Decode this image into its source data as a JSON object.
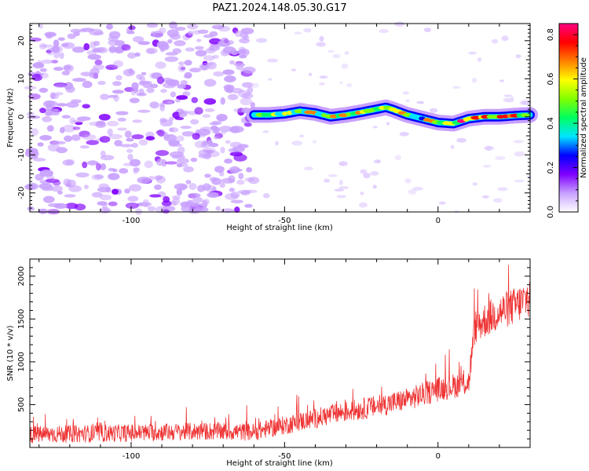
{
  "title": "PAZ1.2024.148.05.30.G17",
  "chart_data": [
    {
      "type": "heatmap",
      "xlabel": "Height of straight line (km)",
      "ylabel": "Frequency (Hz)",
      "xlim": [
        -133,
        30
      ],
      "ylim": [
        -25,
        24.5
      ],
      "x_ticks": [
        -100,
        -50,
        0
      ],
      "y_ticks": [
        -20,
        -10,
        0,
        10,
        20
      ],
      "noise_region_x": [
        -133,
        -60
      ],
      "signal_track": {
        "x": [
          -60,
          -55,
          -50,
          -45,
          -40,
          -35,
          -30,
          -25,
          -20,
          -17,
          -15,
          -10,
          -5,
          0,
          5,
          10,
          15,
          20,
          25,
          30
        ],
        "freq_hz": [
          0.5,
          0.5,
          0.8,
          1.5,
          1.0,
          0.0,
          0.5,
          1.2,
          2.0,
          2.5,
          2.0,
          0.5,
          -0.5,
          -1.5,
          -1.8,
          -0.5,
          0.0,
          0.0,
          0.3,
          0.5
        ]
      },
      "colorbar": {
        "label": "Normalized spectral amplitude",
        "ticks": [
          0.0,
          0.2,
          0.4,
          0.6,
          0.8
        ],
        "range": [
          0,
          0.85
        ],
        "colors": [
          "#ffffff",
          "#c8a0ff",
          "#8000ff",
          "#0000ff",
          "#00e5ff",
          "#00ff60",
          "#80ff00",
          "#ffff00",
          "#ff8000",
          "#ff0000",
          "#ff0080"
        ]
      },
      "grid": false
    },
    {
      "type": "line",
      "xlabel": "Height of straight line (km)",
      "ylabel": "SNR (10 * v/v)",
      "xlim": [
        -133,
        30
      ],
      "ylim": [
        0,
        2200
      ],
      "x_ticks": [
        -100,
        -50,
        0
      ],
      "y_ticks": [
        500,
        1000,
        1500,
        2000
      ],
      "series_color": "#ee3333",
      "trend": {
        "x": [
          -133,
          -100,
          -75,
          -60,
          -50,
          -40,
          -30,
          -20,
          -10,
          -5,
          0,
          5,
          10,
          12,
          15,
          20,
          25,
          30
        ],
        "snr": [
          150,
          170,
          190,
          180,
          260,
          340,
          420,
          480,
          560,
          620,
          680,
          720,
          760,
          1400,
          1480,
          1580,
          1650,
          1750
        ]
      },
      "noise_amplitude": [
        90,
        140
      ],
      "grid": false
    }
  ]
}
